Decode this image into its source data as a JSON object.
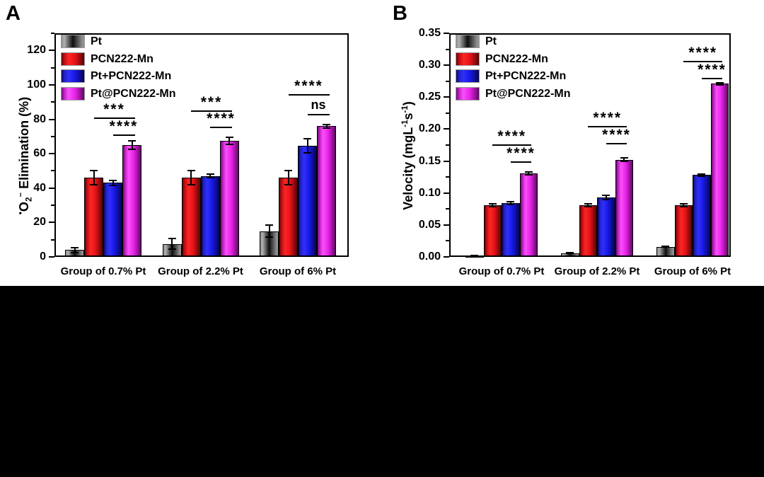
{
  "figure": {
    "panels": [
      "A",
      "B"
    ],
    "background": "#ffffff",
    "footer_color": "#000000"
  },
  "chart_data": [
    {
      "type": "bar",
      "panel_label": "A",
      "ylabel_plain": "•O2− Elimination (%)",
      "ylabel_parts": [
        {
          "t": "•",
          "style": "sup"
        },
        {
          "t": "O"
        },
        {
          "t": "2",
          "style": "sub"
        },
        {
          "t": "−",
          "style": "sup"
        },
        {
          "t": " Elimination (%)"
        }
      ],
      "ylim": [
        0,
        130
      ],
      "yticks": [
        {
          "v": 0,
          "label": "0"
        },
        {
          "v": 20,
          "label": "20"
        },
        {
          "v": 40,
          "label": "40"
        },
        {
          "v": 60,
          "label": "60"
        },
        {
          "v": 80,
          "label": "80"
        },
        {
          "v": 100,
          "label": "100"
        },
        {
          "v": 120,
          "label": "120"
        }
      ],
      "yminor": [
        10,
        30,
        50,
        70,
        90,
        110,
        130
      ],
      "categories": [
        "Group of 0.7% Pt",
        "Group of 2.2% Pt",
        "Group of 6% Pt"
      ],
      "legend_position": "top-left-inside",
      "series": [
        {
          "name": "Pt",
          "color": "#1a1a1a",
          "stops": [
            [
              "#8c8c8c",
              0
            ],
            [
              "#b2b2b2",
              12
            ],
            [
              "#0e0e0e",
              50
            ],
            [
              "#8a8a8a",
              90
            ],
            [
              "#979797",
              100
            ]
          ],
          "values": [
            4,
            7.5,
            15
          ],
          "errors": [
            1.5,
            3,
            3.5
          ]
        },
        {
          "name": "PCN222-Mn",
          "color": "#e81418",
          "stops": [
            [
              "#600608",
              0
            ],
            [
              "#c00d10",
              12
            ],
            [
              "#fb2626",
              32
            ],
            [
              "#e61317",
              60
            ],
            [
              "#550507",
              100
            ]
          ],
          "values": [
            46,
            46,
            46
          ],
          "errors": [
            4,
            4,
            4
          ]
        },
        {
          "name": "Pt+PCN222-Mn",
          "color": "#1b1be8",
          "stops": [
            [
              "#08085c",
              0
            ],
            [
              "#2222c8",
              12
            ],
            [
              "#3030fb",
              32
            ],
            [
              "#1717e6",
              60
            ],
            [
              "#060650",
              100
            ]
          ],
          "values": [
            43,
            47,
            64.5
          ],
          "errors": [
            1.5,
            1,
            4
          ]
        },
        {
          "name": "Pt@PCN222-Mn",
          "color": "#e922e9",
          "stops": [
            [
              "#6b0e70",
              0
            ],
            [
              "#c020c4",
              12
            ],
            [
              "#fa50fa",
              30
            ],
            [
              "#e822e8",
              60
            ],
            [
              "#5c0b60",
              100
            ]
          ],
          "values": [
            65,
            67.5,
            76
          ],
          "errors": [
            2.5,
            2,
            1
          ]
        }
      ],
      "significance": [
        {
          "group": 0,
          "label": "***",
          "y": 81,
          "from": 1,
          "to": 3
        },
        {
          "group": 0,
          "label": "****",
          "y": 71,
          "from": 2,
          "to": 3
        },
        {
          "group": 1,
          "label": "***",
          "y": 85,
          "from": 1,
          "to": 3
        },
        {
          "group": 1,
          "label": "****",
          "y": 75.5,
          "from": 2,
          "to": 3
        },
        {
          "group": 2,
          "label": "****",
          "y": 94.5,
          "from": 1,
          "to": 3
        },
        {
          "group": 2,
          "label": "ns",
          "y": 83,
          "from": 2,
          "to": 3
        }
      ]
    },
    {
      "type": "bar",
      "panel_label": "B",
      "ylabel_plain": "Velocity (mgL-1s-1)",
      "ylabel_parts": [
        {
          "t": "Velocity (mgL"
        },
        {
          "t": "-1",
          "style": "sup"
        },
        {
          "t": "s"
        },
        {
          "t": "-1",
          "style": "sup"
        },
        {
          "t": ")"
        }
      ],
      "ylim": [
        0,
        0.35
      ],
      "yticks": [
        {
          "v": 0,
          "label": "0.00"
        },
        {
          "v": 0.05,
          "label": "0.05"
        },
        {
          "v": 0.1,
          "label": "0.10"
        },
        {
          "v": 0.15,
          "label": "0.15"
        },
        {
          "v": 0.2,
          "label": "0.20"
        },
        {
          "v": 0.25,
          "label": "0.25"
        },
        {
          "v": 0.3,
          "label": "0.30"
        },
        {
          "v": 0.35,
          "label": "0.35"
        }
      ],
      "yminor": [
        0.025,
        0.075,
        0.125,
        0.175,
        0.225,
        0.275,
        0.325
      ],
      "categories": [
        "Group of 0.7% Pt",
        "Group of 2.2% Pt",
        "Group of 6% Pt"
      ],
      "legend_position": "top-left-inside",
      "series": [
        {
          "name": "Pt",
          "color": "#1a1a1a",
          "stops": [
            [
              "#8c8c8c",
              0
            ],
            [
              "#b2b2b2",
              12
            ],
            [
              "#0e0e0e",
              50
            ],
            [
              "#8a8a8a",
              90
            ],
            [
              "#979797",
              100
            ]
          ],
          "values": [
            0.001,
            0.006,
            0.016
          ],
          "errors": [
            0.001,
            0.001,
            0.001
          ]
        },
        {
          "name": "PCN222-Mn",
          "color": "#e81418",
          "stops": [
            [
              "#600608",
              0
            ],
            [
              "#c00d10",
              12
            ],
            [
              "#fb2626",
              32
            ],
            [
              "#e61317",
              60
            ],
            [
              "#550507",
              100
            ]
          ],
          "values": [
            0.081,
            0.081,
            0.081
          ],
          "errors": [
            0.002,
            0.002,
            0.002
          ]
        },
        {
          "name": "Pt+PCN222-Mn",
          "color": "#1b1be8",
          "stops": [
            [
              "#08085c",
              0
            ],
            [
              "#2222c8",
              12
            ],
            [
              "#3030fb",
              32
            ],
            [
              "#1717e6",
              60
            ],
            [
              "#060650",
              100
            ]
          ],
          "values": [
            0.084,
            0.093,
            0.128
          ],
          "errors": [
            0.002,
            0.003,
            0.002
          ]
        },
        {
          "name": "Pt@PCN222-Mn",
          "color": "#e922e9",
          "stops": [
            [
              "#6b0e70",
              0
            ],
            [
              "#c020c4",
              12
            ],
            [
              "#fa50fa",
              30
            ],
            [
              "#e822e8",
              60
            ],
            [
              "#5c0b60",
              100
            ]
          ],
          "values": [
            0.131,
            0.152,
            0.271
          ],
          "errors": [
            0.002,
            0.003,
            0.002
          ]
        }
      ],
      "significance": [
        {
          "group": 0,
          "label": "****",
          "y": 0.176,
          "from": 1,
          "to": 3
        },
        {
          "group": 0,
          "label": "****",
          "y": 0.149,
          "from": 2,
          "to": 3
        },
        {
          "group": 1,
          "label": "****",
          "y": 0.205,
          "from": 1,
          "to": 3
        },
        {
          "group": 1,
          "label": "****",
          "y": 0.178,
          "from": 2,
          "to": 3
        },
        {
          "group": 2,
          "label": "****",
          "y": 0.307,
          "from": 1,
          "to": 3
        },
        {
          "group": 2,
          "label": "****",
          "y": 0.28,
          "from": 2,
          "to": 3
        }
      ]
    }
  ]
}
